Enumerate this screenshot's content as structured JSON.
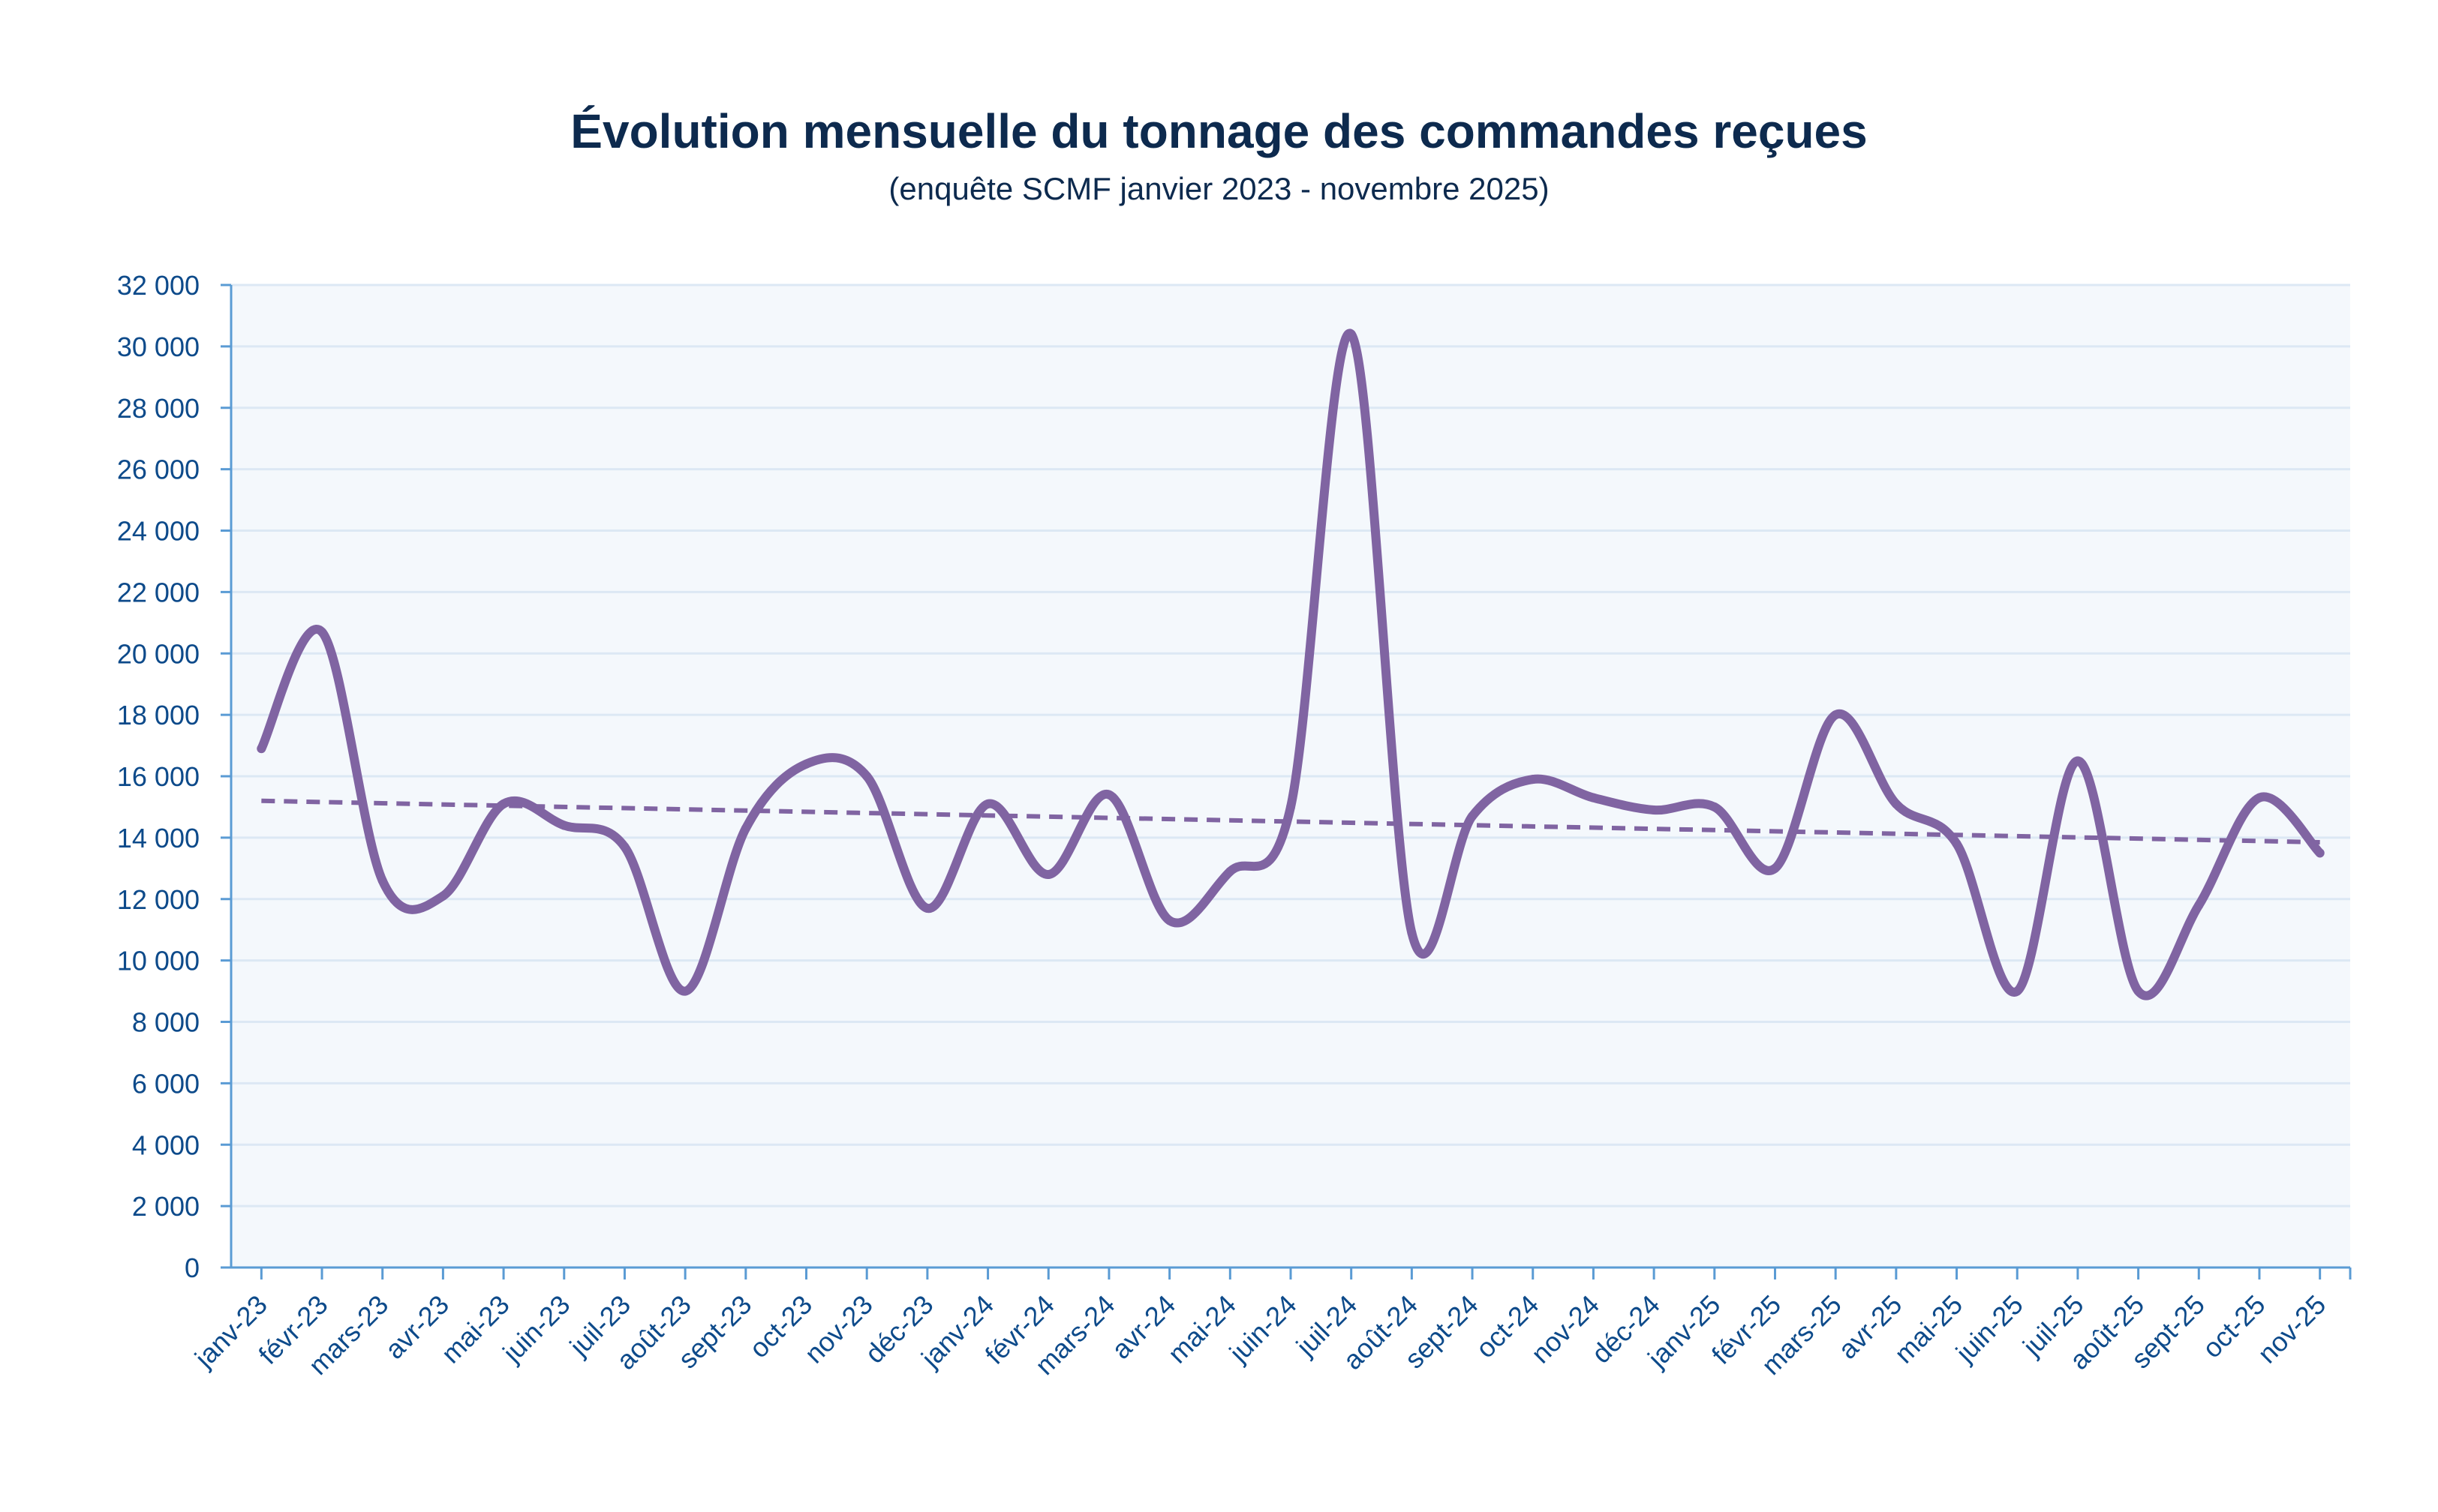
{
  "chart_data": {
    "type": "line",
    "title": "Évolution mensuelle du tonnage des commandes reçues",
    "subtitle": "(enquête SCMF janvier 2023 - novembre 2025)",
    "xlabel": "",
    "ylabel": "",
    "ylim": [
      0,
      32000
    ],
    "y_ticks": [
      "0",
      "2 000",
      "4 000",
      "6 000",
      "8 000",
      "10 000",
      "12 000",
      "14 000",
      "16 000",
      "18 000",
      "20 000",
      "22 000",
      "24 000",
      "26 000",
      "28 000",
      "30 000",
      "32 000"
    ],
    "grid": true,
    "legend": "none",
    "categories": [
      "janv-23",
      "févr-23",
      "mars-23",
      "avr-23",
      "mai-23",
      "juin-23",
      "juil-23",
      "août-23",
      "sept-23",
      "oct-23",
      "nov-23",
      "déc-23",
      "janv-24",
      "févr-24",
      "mars-24",
      "avr-24",
      "mai-24",
      "juin-24",
      "juil-24",
      "août-24",
      "sept-24",
      "oct-24",
      "nov-24",
      "déc-24",
      "janv-25",
      "févr-25",
      "mars-25",
      "avr-25",
      "mai-25",
      "juin-25",
      "juil-25",
      "août-25",
      "sept-25",
      "oct-25",
      "nov-25"
    ],
    "series": [
      {
        "values": [
          16900,
          20700,
          12600,
          12100,
          15100,
          14400,
          13700,
          9000,
          14300,
          16400,
          16000,
          11700,
          15100,
          12800,
          15400,
          11300,
          12900,
          15000,
          30400,
          10900,
          14700,
          15900,
          15300,
          14900,
          15000,
          13000,
          18000,
          15100,
          13800,
          9000,
          16500,
          9000,
          11800,
          15300,
          13500
        ],
        "color": "#8064a2",
        "style": "solid"
      }
    ],
    "trendline": {
      "start": 15200,
      "end": 13850,
      "color": "#8064a2",
      "style": "dashed"
    },
    "colors": {
      "plot_background": "#f4f8fc",
      "gridline": "#dce8f4",
      "axis": "#5a9bd4",
      "text": "#0d4a8a",
      "title": "#0d2a4e"
    }
  }
}
